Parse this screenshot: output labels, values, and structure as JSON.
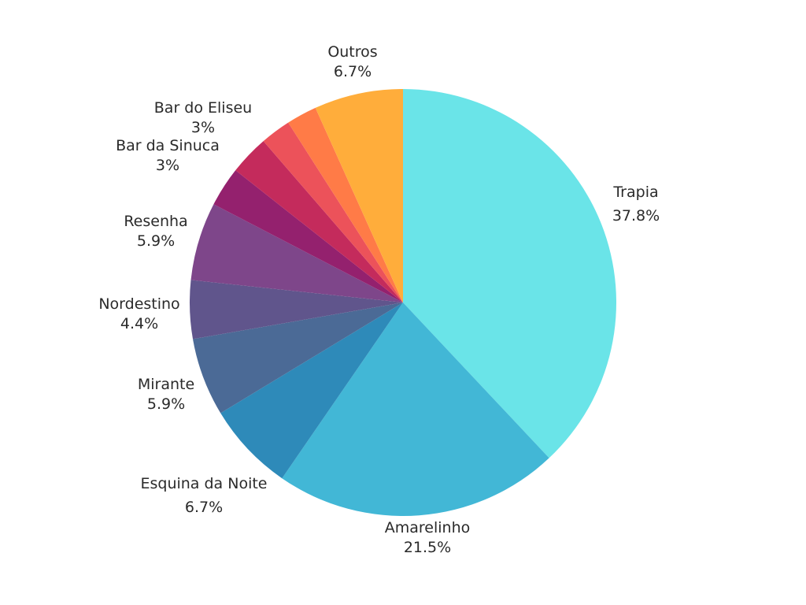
{
  "chart_data": {
    "type": "pie",
    "start_angle_deg": 0,
    "direction": "clockwise",
    "slices": [
      {
        "label": "Trapia",
        "value": 37.8,
        "value_label": "37.8%",
        "color": "#6ae4e8"
      },
      {
        "label": "Amarelinho",
        "value": 21.5,
        "value_label": "21.5%",
        "color": "#42b7d6"
      },
      {
        "label": "Esquina da Noite",
        "value": 6.7,
        "value_label": "6.7%",
        "color": "#2e8ab9"
      },
      {
        "label": "Mirante",
        "value": 5.9,
        "value_label": "5.9%",
        "color": "#4b6a96"
      },
      {
        "label": "Nordestino",
        "value": 4.4,
        "value_label": "4.4%",
        "color": "#60558c"
      },
      {
        "label": "Resenha",
        "value": 5.9,
        "value_label": "5.9%",
        "color": "#7e468a"
      },
      {
        "label": "Bar da Sinuca",
        "value": 3,
        "value_label": "3%",
        "color": "#94216e"
      },
      {
        "label": "Bar do Eliseu",
        "value": 3,
        "value_label": "3%",
        "color": "#c42b5c"
      },
      {
        "label": "",
        "value": 2.3,
        "value_label": "",
        "color": "#ec525a"
      },
      {
        "label": "",
        "value": 2.3,
        "value_label": "",
        "color": "#ff7b47"
      },
      {
        "label": "Outros",
        "value": 6.7,
        "value_label": "6.7%",
        "color": "#ffad3b"
      }
    ]
  }
}
